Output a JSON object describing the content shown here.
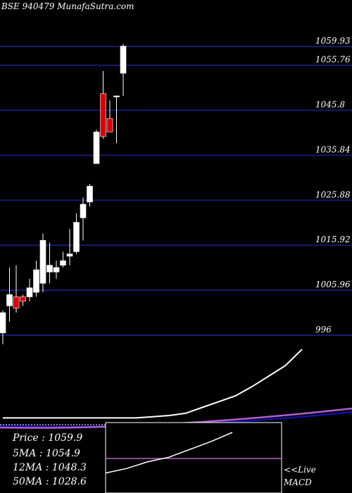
{
  "header": {
    "title": "BSE 940479 MunafaSutra.com"
  },
  "colors": {
    "background": "#000000",
    "grid": "#1a1a6e",
    "up": "#ffffff",
    "down": "#dd0000",
    "ma_line": "#ffffff",
    "ma_long": "#1010a0",
    "ma_mid": "#b060d0",
    "macd_signal": "#c060c0"
  },
  "chart_data": [
    {
      "type": "candlestick",
      "title": "BSE 940479 MunafaSutra.com",
      "ylim": [
        993,
        1063
      ],
      "price_levels": [
        "1059.93",
        "1055.76",
        "1045.8",
        "1035.84",
        "1025.88",
        "1015.92",
        "1005.96",
        "996"
      ],
      "candles": [
        {
          "o": 996.5,
          "h": 1001.5,
          "l": 994.0,
          "c": 1001.0
        },
        {
          "o": 1002.5,
          "h": 1011.0,
          "l": 999.0,
          "c": 1005.0
        },
        {
          "o": 1004.5,
          "h": 1011.5,
          "l": 1001.0,
          "c": 1002.0
        },
        {
          "o": 1004.5,
          "h": 1005.0,
          "l": 1002.5,
          "c": 1003.5
        },
        {
          "o": 1004.5,
          "h": 1008.5,
          "l": 1003.5,
          "c": 1006.5
        },
        {
          "o": 1005.5,
          "h": 1012.5,
          "l": 1004.5,
          "c": 1010.5
        },
        {
          "o": 1007.5,
          "h": 1018.5,
          "l": 1005.5,
          "c": 1017.0
        },
        {
          "o": 1010.0,
          "h": 1016.5,
          "l": 1007.5,
          "c": 1011.5
        },
        {
          "o": 1010.0,
          "h": 1012.5,
          "l": 1008.5,
          "c": 1011.0
        },
        {
          "o": 1011.5,
          "h": 1014.5,
          "l": 1011.0,
          "c": 1012.5
        },
        {
          "o": 1013.5,
          "h": 1019.5,
          "l": 1011.5,
          "c": 1014.0
        },
        {
          "o": 1014.5,
          "h": 1023.0,
          "l": 1014.0,
          "c": 1021.0
        },
        {
          "o": 1022.0,
          "h": 1026.5,
          "l": 1017.0,
          "c": 1025.0
        },
        {
          "o": 1025.5,
          "h": 1029.5,
          "l": 1024.5,
          "c": 1029.0
        },
        {
          "o": 1034.0,
          "h": 1041.5,
          "l": 1034.0,
          "c": 1041.0
        },
        {
          "o": 1049.5,
          "h": 1054.5,
          "l": 1039.5,
          "c": 1040.0
        },
        {
          "o": 1044.0,
          "h": 1048.0,
          "l": 1041.5,
          "c": 1041.0
        },
        {
          "o": 1049.0,
          "h": 1049.0,
          "l": 1038.5,
          "c": 1049.0
        },
        {
          "o": 1054.0,
          "h": 1060.5,
          "l": 1049.0,
          "c": 1060.0
        }
      ]
    },
    {
      "type": "line",
      "title": "",
      "series": [
        {
          "values": [
            1,
            1,
            1,
            1,
            1,
            1,
            1,
            1,
            1,
            2,
            3,
            5,
            10,
            15,
            20,
            28,
            37,
            46,
            60
          ]
        }
      ]
    },
    {
      "type": "line",
      "title": "MACD",
      "series": [
        {
          "values": [
            24,
            28,
            34,
            38,
            45,
            52,
            60
          ]
        }
      ]
    }
  ],
  "info": {
    "price_label": "Price   : 1059.9",
    "ma5_label": "5MA : 1054.9",
    "ma12_label": "12MA : 1048.3",
    "ma50_label": "50MA : 1028.6"
  },
  "macd": {
    "live_label": "<<Live",
    "macd_label": "MACD"
  }
}
